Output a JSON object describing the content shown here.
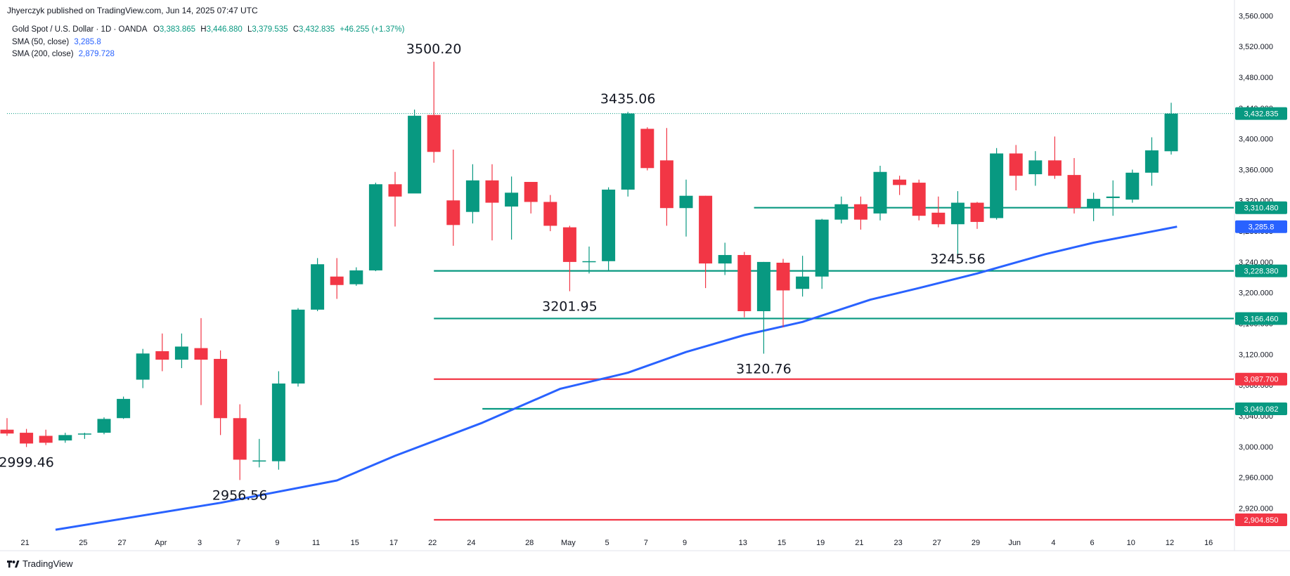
{
  "header": {
    "published": "Jhyerczyk published on TradingView.com, Jun 14, 2025 07:47 UTC",
    "symbol": "Gold Spot / U.S. Dollar · 1D · OANDA",
    "o_label": "O",
    "o_value": "3,383.865",
    "h_label": "H",
    "h_value": "3,446.880",
    "l_label": "L",
    "l_value": "3,379.535",
    "c_label": "C",
    "c_value": "3,432.835",
    "change": "+46.255 (+1.37%)",
    "sma50_label": "SMA (50, close)",
    "sma50_value": "3,285.8",
    "sma200_label": "SMA (200, close)",
    "sma200_value": "2,879.728"
  },
  "footer": {
    "brand": "TradingView"
  },
  "colors": {
    "up": "#089981",
    "down": "#f23645",
    "sma": "#2962ff",
    "support": "#089981",
    "resistance": "#f23645"
  },
  "chart_data": {
    "type": "candlestick",
    "x_ticks": [
      "21",
      "25",
      "27",
      "Apr",
      "3",
      "7",
      "9",
      "11",
      "15",
      "17",
      "22",
      "24",
      "28",
      "May",
      "5",
      "7",
      "9",
      "13",
      "15",
      "19",
      "21",
      "23",
      "27",
      "29",
      "Jun",
      "4",
      "6",
      "10",
      "12",
      "16"
    ],
    "y_ticks": [
      "3,560.000",
      "3,520.000",
      "3,480.000",
      "3,440.000",
      "3,400.000",
      "3,360.000",
      "3,320.000",
      "3,280.000",
      "3,240.000",
      "3,200.000",
      "3,160.000",
      "3,120.000",
      "3,080.000",
      "3,040.000",
      "3,000.000",
      "2,960.000",
      "2,920.000"
    ],
    "ylim": [
      2893,
      3564
    ],
    "candles": [
      {
        "o": 3022,
        "h": 3037,
        "l": 3014,
        "c": 3017
      },
      {
        "o": 3018,
        "h": 3023,
        "l": 2999.46,
        "c": 3004
      },
      {
        "o": 3014,
        "h": 3022,
        "l": 3002,
        "c": 3005
      },
      {
        "o": 3008,
        "h": 3018,
        "l": 3005,
        "c": 3015
      },
      {
        "o": 3016,
        "h": 3018,
        "l": 3010,
        "c": 3017
      },
      {
        "o": 3018,
        "h": 3038,
        "l": 3016,
        "c": 3036
      },
      {
        "o": 3037,
        "h": 3065,
        "l": 3036,
        "c": 3062
      },
      {
        "o": 3087,
        "h": 3127,
        "l": 3076,
        "c": 3121
      },
      {
        "o": 3124,
        "h": 3147,
        "l": 3098,
        "c": 3113
      },
      {
        "o": 3113,
        "h": 3147,
        "l": 3102,
        "c": 3130
      },
      {
        "o": 3128,
        "h": 3167,
        "l": 3054,
        "c": 3113
      },
      {
        "o": 3114,
        "h": 3125,
        "l": 3015,
        "c": 3037
      },
      {
        "o": 3037,
        "h": 3055,
        "l": 2956.56,
        "c": 2983
      },
      {
        "o": 2981,
        "h": 3010,
        "l": 2973,
        "c": 2982
      },
      {
        "o": 2981,
        "h": 3098,
        "l": 2970,
        "c": 3082
      },
      {
        "o": 3082,
        "h": 3180,
        "l": 3078,
        "c": 3178
      },
      {
        "o": 3178,
        "h": 3245,
        "l": 3176,
        "c": 3237
      },
      {
        "o": 3221,
        "h": 3245,
        "l": 3192,
        "c": 3210
      },
      {
        "o": 3211,
        "h": 3233,
        "l": 3209,
        "c": 3229
      },
      {
        "o": 3229,
        "h": 3343,
        "l": 3228,
        "c": 3341
      },
      {
        "o": 3341,
        "h": 3357,
        "l": 3286,
        "c": 3325
      },
      {
        "o": 3329,
        "h": 3438,
        "l": 3330,
        "c": 3430
      },
      {
        "o": 3431,
        "h": 3500.2,
        "l": 3369,
        "c": 3383
      },
      {
        "o": 3320,
        "h": 3386,
        "l": 3261,
        "c": 3288
      },
      {
        "o": 3305,
        "h": 3367,
        "l": 3290,
        "c": 3346
      },
      {
        "o": 3346,
        "h": 3367,
        "l": 3268,
        "c": 3317
      },
      {
        "o": 3312,
        "h": 3351,
        "l": 3269,
        "c": 3330
      },
      {
        "o": 3344,
        "h": 3344,
        "l": 3303,
        "c": 3318
      },
      {
        "o": 3318,
        "h": 3327,
        "l": 3280,
        "c": 3287
      },
      {
        "o": 3285,
        "h": 3287,
        "l": 3201.95,
        "c": 3240
      },
      {
        "o": 3240,
        "h": 3260,
        "l": 3225,
        "c": 3241
      },
      {
        "o": 3241,
        "h": 3337,
        "l": 3229,
        "c": 3334
      },
      {
        "o": 3334,
        "h": 3435.06,
        "l": 3325,
        "c": 3433
      },
      {
        "o": 3413,
        "h": 3415,
        "l": 3359,
        "c": 3362
      },
      {
        "o": 3372,
        "h": 3414,
        "l": 3287,
        "c": 3310
      },
      {
        "o": 3310,
        "h": 3347,
        "l": 3273,
        "c": 3326
      },
      {
        "o": 3326,
        "h": 3326,
        "l": 3206,
        "c": 3238
      },
      {
        "o": 3238,
        "h": 3265,
        "l": 3223,
        "c": 3249
      },
      {
        "o": 3249,
        "h": 3253,
        "l": 3168,
        "c": 3176
      },
      {
        "o": 3176,
        "h": 3240,
        "l": 3120.76,
        "c": 3240
      },
      {
        "o": 3239,
        "h": 3244,
        "l": 3155,
        "c": 3203
      },
      {
        "o": 3205,
        "h": 3248,
        "l": 3195,
        "c": 3221
      },
      {
        "o": 3221,
        "h": 3296,
        "l": 3205,
        "c": 3295
      },
      {
        "o": 3295,
        "h": 3325,
        "l": 3290,
        "c": 3315
      },
      {
        "o": 3315,
        "h": 3325,
        "l": 3282,
        "c": 3295
      },
      {
        "o": 3303,
        "h": 3365,
        "l": 3294,
        "c": 3357
      },
      {
        "o": 3347,
        "h": 3352,
        "l": 3327,
        "c": 3340
      },
      {
        "o": 3343,
        "h": 3347,
        "l": 3294,
        "c": 3300
      },
      {
        "o": 3304,
        "h": 3325,
        "l": 3285,
        "c": 3289
      },
      {
        "o": 3289,
        "h": 3332,
        "l": 3245.56,
        "c": 3317
      },
      {
        "o": 3317,
        "h": 3318,
        "l": 3283,
        "c": 3292
      },
      {
        "o": 3297,
        "h": 3388,
        "l": 3295,
        "c": 3381
      },
      {
        "o": 3381,
        "h": 3392,
        "l": 3333,
        "c": 3352
      },
      {
        "o": 3354,
        "h": 3384,
        "l": 3339,
        "c": 3372
      },
      {
        "o": 3372,
        "h": 3403,
        "l": 3348,
        "c": 3352
      },
      {
        "o": 3353,
        "h": 3375,
        "l": 3303,
        "c": 3310
      },
      {
        "o": 3310,
        "h": 3330,
        "l": 3293,
        "c": 3322
      },
      {
        "o": 3323,
        "h": 3346,
        "l": 3300,
        "c": 3325
      },
      {
        "o": 3321,
        "h": 3360,
        "l": 3317,
        "c": 3356
      },
      {
        "o": 3356,
        "h": 3402,
        "l": 3339,
        "c": 3385
      },
      {
        "o": 3383.865,
        "h": 3446.88,
        "l": 3379.535,
        "c": 3432.835
      }
    ],
    "sma50": [
      [
        2.5,
        2892
      ],
      [
        11,
        2927
      ],
      [
        17,
        2956
      ],
      [
        20,
        2988
      ],
      [
        24.5,
        3031
      ],
      [
        28.5,
        3075
      ],
      [
        32,
        3096
      ],
      [
        35,
        3123
      ],
      [
        38,
        3145
      ],
      [
        41,
        3162
      ],
      [
        44.5,
        3191
      ],
      [
        47,
        3206
      ],
      [
        50,
        3225
      ],
      [
        53.5,
        3250
      ],
      [
        56,
        3265
      ],
      [
        60.3,
        3285.8
      ]
    ],
    "horizontal_lines": [
      {
        "price": 3432.835,
        "label": "3,432.835",
        "style": "dotted",
        "color": "#089981",
        "from": 0
      },
      {
        "price": 3310.48,
        "label": "3,310.480",
        "style": "solid",
        "color": "#089981",
        "from": 38.5
      },
      {
        "price": 3285.8,
        "label": "3,285.8",
        "style": "none",
        "color": "#2962ff",
        "from": 60.3
      },
      {
        "price": 3228.38,
        "label": "3,228.380",
        "style": "solid",
        "color": "#089981",
        "from": 22
      },
      {
        "price": 3166.46,
        "label": "3,166.460",
        "style": "solid",
        "color": "#089981",
        "from": 22
      },
      {
        "price": 3087.7,
        "label": "3,087.700",
        "style": "solid",
        "color": "#f23645",
        "from": 22
      },
      {
        "price": 3049.082,
        "label": "3,049.082",
        "style": "solid",
        "color": "#089981",
        "from": 24.5
      },
      {
        "price": 2904.85,
        "label": "2,904.850",
        "style": "solid",
        "color": "#f23645",
        "from": 22
      }
    ],
    "annotations": [
      {
        "text": "2999.46",
        "anchor": 1,
        "price": 2999.46,
        "pos": "below"
      },
      {
        "text": "2956.56",
        "anchor": 12,
        "price": 2956.56,
        "pos": "below"
      },
      {
        "text": "3500.20",
        "anchor": 22,
        "price": 3500.2,
        "pos": "above"
      },
      {
        "text": "3201.95",
        "anchor": 29,
        "price": 3201.95,
        "pos": "below"
      },
      {
        "text": "3435.06",
        "anchor": 32,
        "price": 3435.06,
        "pos": "above"
      },
      {
        "text": "3120.76",
        "anchor": 39,
        "price": 3120.76,
        "pos": "below"
      },
      {
        "text": "3245.56",
        "anchor": 49,
        "price": 3245.56,
        "pos": "mid"
      }
    ]
  }
}
